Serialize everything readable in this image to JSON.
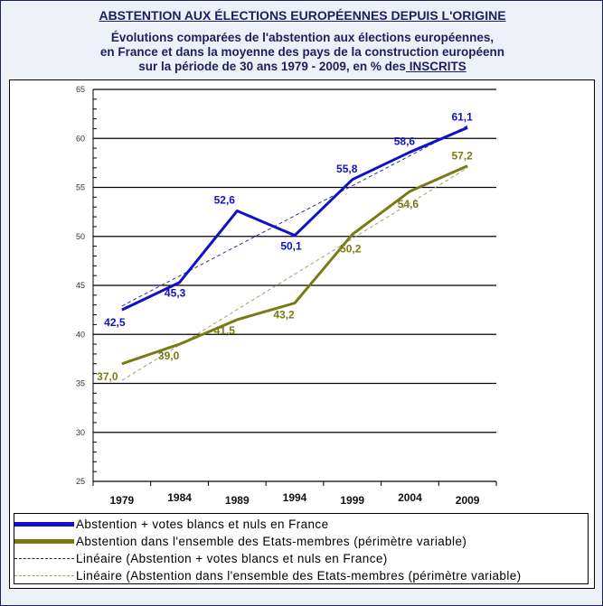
{
  "header": {
    "title": "ABSTENTION AUX ÉLECTIONS EUROPÉENNES DEPUIS L'ORIGINE",
    "subtitle_1": "Évolutions comparées de l'abstention aux élections européennes,",
    "subtitle_2": "en France et dans la moyenne des pays de la construction européenn",
    "subtitle_3a": "sur la période de 30 ans 1979 - 2009, en % des",
    "subtitle_3b": " INSCRITS"
  },
  "chart_data": {
    "type": "line",
    "title": "ABSTENTION AUX ÉLECTIONS EUROPÉENNES DEPUIS L'ORIGINE",
    "categories": [
      "1979",
      "1984",
      "1989",
      "1994",
      "1999",
      "2004",
      "2009"
    ],
    "ylim": [
      25,
      65
    ],
    "yticks": [
      "25",
      "30",
      "35",
      "40",
      "45",
      "50",
      "55",
      "60",
      "65"
    ],
    "grid": true,
    "legend_position": "bottom",
    "series": [
      {
        "name": "Abstention + votes blancs et nuls en France",
        "color": "#1010c8",
        "values": [
          42.5,
          45.3,
          52.6,
          50.1,
          55.8,
          58.6,
          61.1
        ],
        "labels": [
          "42,5",
          "45,3",
          "52,6",
          "50,1",
          "55,8",
          "58,6",
          "61,1"
        ]
      },
      {
        "name": "Abstention dans l'ensemble des Etats-membres (périmètre variable)",
        "color": "#7a7a14",
        "values": [
          37.0,
          39.0,
          41.5,
          43.2,
          50.2,
          54.6,
          57.2
        ],
        "labels": [
          "37,0",
          "39,0",
          "41,5",
          "43,2",
          "50,2",
          "54,6",
          "57,2"
        ]
      }
    ],
    "trendlines": [
      {
        "name": "Linéaire (Abstention + votes blancs et nuls en France)",
        "color": "#3030a0",
        "start": 42.9,
        "end": 61.3
      },
      {
        "name": "Linéaire (Abstention dans l'ensemble des Etats-membres (périmètre variable)",
        "color": "#a0a070",
        "start": 35.3,
        "end": 57.0
      }
    ]
  }
}
